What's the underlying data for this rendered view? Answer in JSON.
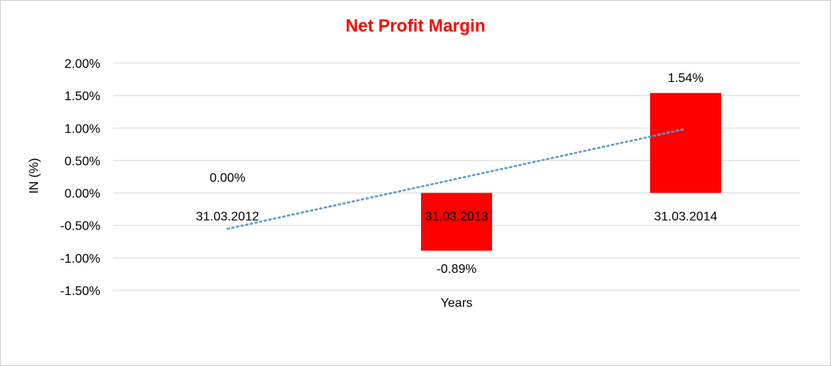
{
  "chart_data": {
    "type": "bar",
    "title": "Net Profit Margin",
    "xlabel": "Years",
    "ylabel": "IN (%)",
    "categories": [
      "31.03.2012",
      "31.03.2013",
      "31.03.2014"
    ],
    "values": [
      0.0,
      -0.89,
      1.54
    ],
    "data_labels": [
      "0.00%",
      "-0.89%",
      "1.54%"
    ],
    "ylim": [
      -1.5,
      2.0
    ],
    "yticks": [
      2.0,
      1.5,
      1.0,
      0.5,
      0.0,
      -0.5,
      -1.0,
      -1.5
    ],
    "ytick_labels": [
      "2.00%",
      "1.50%",
      "1.00%",
      "0.50%",
      "0.00%",
      "-0.50%",
      "-1.00%",
      "-1.50%"
    ],
    "grid": true,
    "legend": "none",
    "bar_color": "#ff0000",
    "trendline": {
      "type": "linear",
      "color": "#5b9bd5",
      "style": "dotted"
    }
  }
}
